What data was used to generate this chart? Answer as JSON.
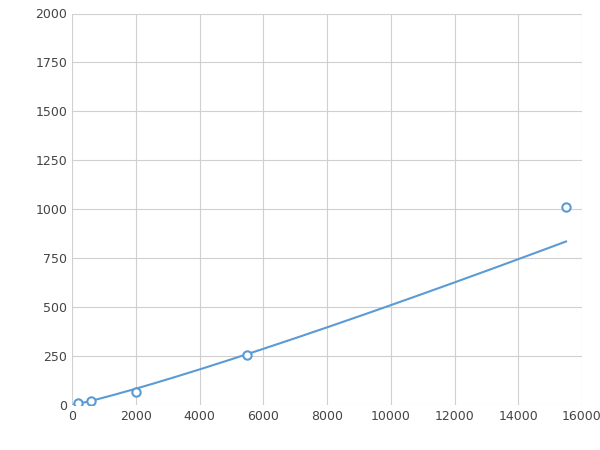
{
  "x": [
    200,
    600,
    2000,
    5500,
    15500
  ],
  "y": [
    8,
    18,
    65,
    255,
    1010
  ],
  "line_color": "#5b9bd5",
  "marker_color": "#5b9bd5",
  "marker_size": 6,
  "xlim": [
    0,
    16000
  ],
  "ylim": [
    0,
    2000
  ],
  "xticks": [
    0,
    2000,
    4000,
    6000,
    8000,
    10000,
    12000,
    14000,
    16000
  ],
  "yticks": [
    0,
    250,
    500,
    750,
    1000,
    1250,
    1500,
    1750,
    2000
  ],
  "grid": true,
  "background_color": "#ffffff",
  "figsize": [
    6.0,
    4.5
  ],
  "dpi": 100
}
